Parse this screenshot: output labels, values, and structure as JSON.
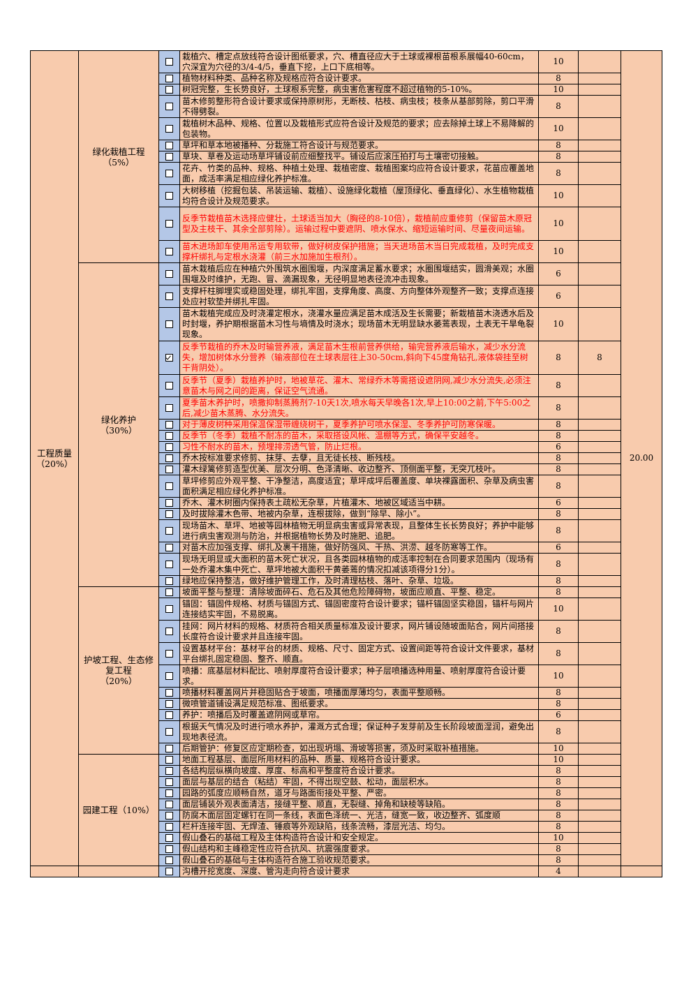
{
  "total_score": "20.00",
  "sections": [
    {
      "name": "工程质量",
      "pct": "（20%）"
    }
  ],
  "subsections": [
    {
      "name": "绿化栽植工程",
      "pct": "（5%）"
    },
    {
      "name": "绿化养护",
      "pct": "（30%）"
    },
    {
      "name": "护坡工程、生态修复工程",
      "pct": "（20%）"
    },
    {
      "name": "园建工程（10%）",
      "pct": ""
    }
  ],
  "rows": [
    {
      "text": "栽植穴、槽定点放线符合设计图纸要求，穴、槽直径应大于土球或裸根苗根系展幅40-60cm，穴深宜为穴径的3/4-4/5，垂直下挖，上口下底相等。",
      "score": "10",
      "red": false,
      "checked": false,
      "actual": ""
    },
    {
      "text": "植物材料种类、品种名称及规格应符合设计要求。",
      "score": "8",
      "red": false,
      "checked": false,
      "actual": ""
    },
    {
      "text": "树冠完整，生长势良好，土球根系完整，病虫害危害程度不超过植物的5-10%。",
      "score": "10",
      "red": false,
      "checked": false,
      "actual": ""
    },
    {
      "text": "苗木修剪整形符合设计要求或保持原树形，无断枝、枯枝、病虫枝；枝条从基部剪除，剪口平滑不得劈裂。",
      "score": "8",
      "red": false,
      "checked": false,
      "actual": ""
    },
    {
      "text": "栽植树木品种、规格、位置以及栽植形式应符合设计及规范的要求；应去除掉土球上不易降解的包装物。",
      "score": "10",
      "red": false,
      "checked": false,
      "actual": ""
    },
    {
      "text": "草坪和草本地被播种、分栽施工符合设计与规范要求。",
      "score": "8",
      "red": false,
      "checked": false,
      "actual": ""
    },
    {
      "text": "草块、草卷及运动场草坪铺设前应细整找平。铺设后应滚压拍打与土壤密切接触。",
      "score": "8",
      "red": false,
      "checked": false,
      "actual": ""
    },
    {
      "text": "花卉、竹类的品种、规格、种植土处理、栽植密度、栽植图案均应符合设计要求，花苗应覆盖地面，成活率满足相应绿化养护标准。",
      "score": "8",
      "red": false,
      "checked": false,
      "actual": ""
    },
    {
      "text": "大树移植（挖掘包装、吊装运输、栽植）、设施绿化栽植（屋顶绿化、垂直绿化）、水生植物栽植均符合设计及规范要求。",
      "score": "10",
      "red": false,
      "checked": false,
      "actual": ""
    },
    {
      "text": "反季节栽植苗木选择应健壮，土球适当加大（胸径的8-10倍），栽植前应重修剪（保留苗木原冠型及主枝干、其余全部剪除）。运输过程中要遮阴、喷水保水、缩短运输时间、尽量夜间运输。",
      "score": "10",
      "red": true,
      "checked": false,
      "actual": ""
    },
    {
      "text": "苗木进场卸车使用吊运专用软带，做好树皮保护措施；当天进场苗木当日完成栽植，及时完成支撑杆绑扎与定根水浇灌（前三水加施加生根剂）。",
      "score": "10",
      "red": true,
      "checked": false,
      "actual": ""
    },
    {
      "text": "苗木栽植后应在种植穴外围筑水圈围堰，内深度满足蓄水要求；水圈围堰结实，圆滑美观；水圈围堰及时维护，无跑、冒、滴漏现象，无径明显地表径流冲击现象。",
      "score": "6",
      "red": false,
      "checked": false,
      "actual": ""
    },
    {
      "text": "支撑杆柱脚埋实或稳固处理，绑扎牢固，支撑角度、高度、方向整体外观整齐一致；支撑点连接处应衬软垫并绑扎牢固。",
      "score": "6",
      "red": false,
      "checked": false,
      "actual": ""
    },
    {
      "text": "苗木栽植完成应及时浇灌定根水，浇灌水量应满足苗木成活及生长需要；新栽植苗木浇透水后及时封堰，养护期根据苗木习性与墒情及时浇水；现场苗木无明显缺水萎蔫表现，土表无干旱龟裂现象。",
      "score": "10",
      "red": false,
      "checked": false,
      "actual": ""
    },
    {
      "text": "反季节栽植的乔木及时输营养液，满足苗木生根前营养供给，输完营养液后输水，减少水分流失，增加树体水分营养（输液部位在土球表层往上30-50cm,斜向下45度角钻孔,液体袋挂至树干背阴处）。",
      "score": "8",
      "red": true,
      "checked": true,
      "actual": "8"
    },
    {
      "text": "反季节（夏季）栽植养护时，地被草花、灌木、常绿乔木等需搭设遮阴网,减少水分流失,必须注意苗木与网之间的距离，保证空气流通。",
      "score": "8",
      "red": true,
      "checked": false,
      "actual": ""
    },
    {
      "text": "夏季苗木养护时，喷撒抑制蒸腾剂7-10天1次,喷水每天早晚各1次,早上10:00之前,下午5:00之后,减少苗木蒸腾、水分流失。",
      "score": "8",
      "red": true,
      "checked": false,
      "actual": ""
    },
    {
      "text": "对于薄皮树种采用保温保湿带缠绕树干，夏季养护可喷水保湿、冬季养护可防寒保暖。",
      "score": "8",
      "red": true,
      "checked": false,
      "actual": ""
    },
    {
      "text": "反季节（冬季）栽植不耐冻的苗木，采取搭设风帐、温棚等方式，确保平安越冬。",
      "score": "8",
      "red": true,
      "checked": false,
      "actual": ""
    },
    {
      "text": "习性不耐水的苗木，预埋排涝透气管，防止烂根。",
      "score": "6",
      "red": true,
      "checked": false,
      "actual": ""
    },
    {
      "text": "乔木按标准要求修剪、抹芽、去孽，且无徒长枝、断残枝。",
      "score": "8",
      "red": false,
      "checked": false,
      "actual": ""
    },
    {
      "text": "灌木绿篱修剪造型优美、层次分明、色泽清晰、收边整齐、顶侧面平整，无突兀枝叶。",
      "score": "8",
      "red": false,
      "checked": false,
      "actual": ""
    },
    {
      "text": "草坪修剪应外观平整、干净整洁，高度适宜；草坪成坪后覆盖度、单块裸露面积、杂草及病虫害面积满足相应绿化养护标准。",
      "score": "8",
      "red": false,
      "checked": false,
      "actual": ""
    },
    {
      "text": "乔木、灌木树圈内保持表土疏松无杂草，片植灌木、地被区域适当中耕。",
      "score": "6",
      "red": false,
      "checked": false,
      "actual": ""
    },
    {
      "text": "及时拔除灌木色带、地被内杂草，连根拔除，做到“除早、除小”。",
      "score": "8",
      "red": false,
      "checked": false,
      "actual": ""
    },
    {
      "text": "现场苗木、草坪、地被等园林植物无明显病虫害或异常表现，且整体生长长势良好；养护中能够进行病虫害观测与防治，并根据植物长势及时施肥、追肥。",
      "score": "8",
      "red": false,
      "checked": false,
      "actual": ""
    },
    {
      "text": "对苗木应加强支撑、绑扎及裹干措施，做好防强风、干热、洪涝、越冬防寒等工作。",
      "score": "6",
      "red": false,
      "checked": false,
      "actual": ""
    },
    {
      "text": "现场无明显或大面积的苗木死亡状况，且各类园林植物的成活率控制在合同要求范围内（现场有一处乔灌木集中死亡、草坪地被大面积干黄萎蔫的情况扣减该项得分1分）。",
      "score": "8",
      "red": false,
      "checked": false,
      "actual": ""
    },
    {
      "text": "绿地应保持整洁，做好维护管理工作，及时清理枯枝、落叶、杂草、垃圾。",
      "score": "8",
      "red": false,
      "checked": false,
      "actual": ""
    },
    {
      "text": "坡面平整与整理：清除坡面碎石、危石及其他危险障碍物，坡面应顺直、平整、稳定。",
      "score": "8",
      "red": false,
      "checked": false,
      "actual": ""
    },
    {
      "text": "锚固：锚固件规格、材质与锚固方式、锚固密度符合设计要求；锚杆锚固坚实稳固，锚杆与网片连接结实牢固，不易脱离。",
      "score": "10",
      "red": false,
      "checked": false,
      "actual": ""
    },
    {
      "text": "挂网：网片材料的规格、材质符合相关质量标准及设计要求，网片铺设随坡面贴合，网片间搭接长度符合设计要求并且连接牢固。",
      "score": "8",
      "red": false,
      "checked": false,
      "actual": ""
    },
    {
      "text": "设置基材平台：基材平台的材质、规格、尺寸、固定方式、设置间距等符合设计文件要求，基材平台绑扎固定稳固、整齐、顺直。",
      "score": "8",
      "red": false,
      "checked": false,
      "actual": ""
    },
    {
      "text": "喷播：底基层材料配比、喷射厚度符合设计要求；种子层喷播选种用量、喷射厚度符合设计要求。",
      "score": "10",
      "red": false,
      "checked": false,
      "actual": ""
    },
    {
      "text": "喷播材料覆盖网片并稳固贴合于坡面，喷播面厚薄均匀，表面平整顺畅。",
      "score": "8",
      "red": false,
      "checked": false,
      "actual": ""
    },
    {
      "text": "微喷管道铺设满足规范标准、图纸要求。",
      "score": "8",
      "red": false,
      "checked": false,
      "actual": ""
    },
    {
      "text": "养护：喷播后及时覆盖遮阴网或草帘。",
      "score": "6",
      "red": false,
      "checked": false,
      "actual": ""
    },
    {
      "text": "根据天气情况及时进行喷水养护，灌溉方式合理；保证种子发芽前及生长阶段坡面湿润，避免出现地表径流。",
      "score": "8",
      "red": false,
      "checked": false,
      "actual": ""
    },
    {
      "text": "后期管护：修复区应定期检查，如出现坍塌、滑坡等损害，须及时采取补植措施。",
      "score": "10",
      "red": false,
      "checked": false,
      "actual": ""
    },
    {
      "text": "地面工程基层、面层所用材料的品种、质量、规格符合设计要求。",
      "score": "10",
      "red": false,
      "checked": false,
      "actual": ""
    },
    {
      "text": "各结构层纵横向坡度、厚度、标高和平整度符合设计要求。",
      "score": "8",
      "red": false,
      "checked": false,
      "actual": ""
    },
    {
      "text": "面层与基层的结合（粘结）牢固，不得出现空鼓、松动，面层积水。",
      "score": "8",
      "red": false,
      "checked": false,
      "actual": ""
    },
    {
      "text": "园路的弧度应顺畅自然，道牙与路面衔接处平整、严密。",
      "score": "8",
      "red": false,
      "checked": false,
      "actual": ""
    },
    {
      "text": "面层铺装外观表面清洁，接缝平整、顺直，无裂缝、掉角和缺棱等缺陷。",
      "score": "8",
      "red": false,
      "checked": false,
      "actual": ""
    },
    {
      "text": "防腐木面层固定螺钉在同一条线，表面色泽统一、光洁，缝宽一致，收边整齐、弧度顺",
      "score": "8",
      "red": false,
      "checked": false,
      "actual": ""
    },
    {
      "text": "栏杆连接牢固、无焊渣、锤痕等外观缺陷，线条流畅，漆层光洁、均匀。",
      "score": "8",
      "red": false,
      "checked": false,
      "actual": ""
    },
    {
      "text": "假山叠石的基础工程及主体构造符合设计和安全规定。",
      "score": "10",
      "red": false,
      "checked": false,
      "actual": ""
    },
    {
      "text": "假山结构和主峰稳定性应符合抗风、抗震强度要求。",
      "score": "8",
      "red": false,
      "checked": false,
      "actual": ""
    },
    {
      "text": "假山叠石的基础与主体构造符合施工验收规范要求。",
      "score": "8",
      "red": false,
      "checked": false,
      "actual": ""
    },
    {
      "text": "沟槽开挖宽度、深度、管沟走向符合设计要求",
      "score": "4",
      "red": false,
      "checked": false,
      "actual": ""
    }
  ]
}
